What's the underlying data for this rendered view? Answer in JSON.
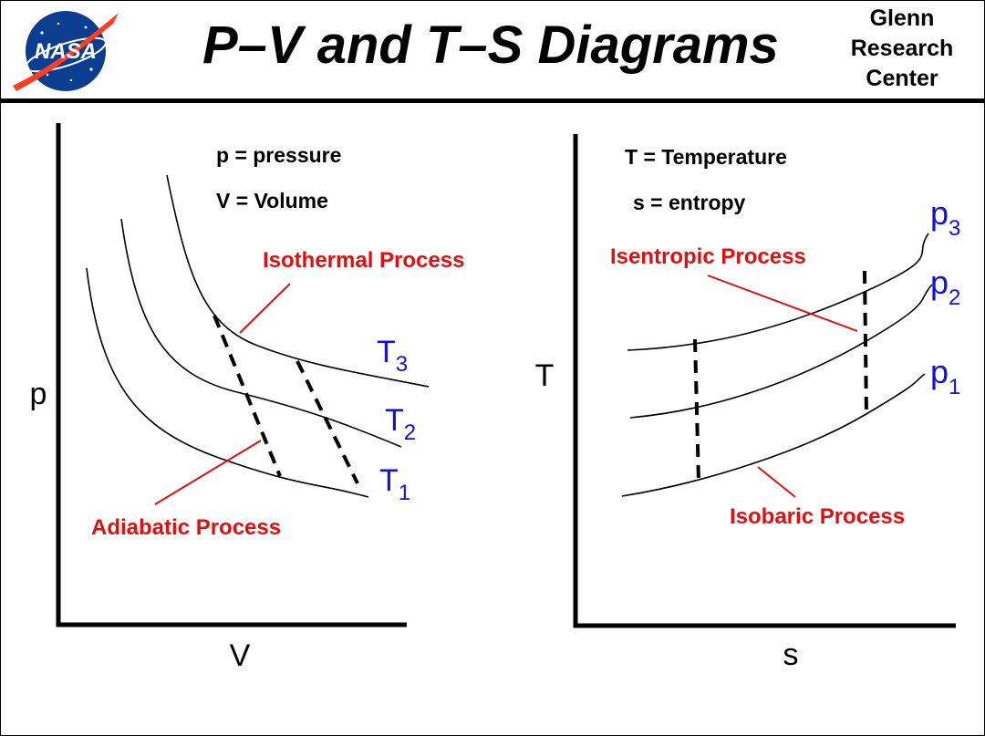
{
  "header": {
    "title": "P–V  and  T–S  Diagrams",
    "logo_text": "NASA",
    "center_line1": "Glenn",
    "center_line2": "Research",
    "center_line3": "Center"
  },
  "pv_diagram": {
    "x_axis_label": "V",
    "y_axis_label": "p",
    "legend_pressure": "p = pressure",
    "legend_volume": "V = Volume",
    "isothermal_label": "Isothermal  Process",
    "adiabatic_label": "Adiabatic  Process",
    "curves": [
      {
        "symbol": "T",
        "subscript": "3"
      },
      {
        "symbol": "T",
        "subscript": "2"
      },
      {
        "symbol": "T",
        "subscript": "1"
      }
    ]
  },
  "ts_diagram": {
    "x_axis_label": "s",
    "y_axis_label": "T",
    "legend_temperature": "T = Temperature",
    "legend_entropy": "s = entropy",
    "isentropic_label": "Isentropic  Process",
    "isobaric_label": "Isobaric  Process",
    "curves": [
      {
        "symbol": "p",
        "subscript": "3"
      },
      {
        "symbol": "p",
        "subscript": "2"
      },
      {
        "symbol": "p",
        "subscript": "1"
      }
    ]
  },
  "colors": {
    "annotation": "#e01010",
    "curve_label": "#1010e0",
    "line": "#000000",
    "logo_blue": "#0b3d91",
    "logo_red": "#fc3d21"
  }
}
